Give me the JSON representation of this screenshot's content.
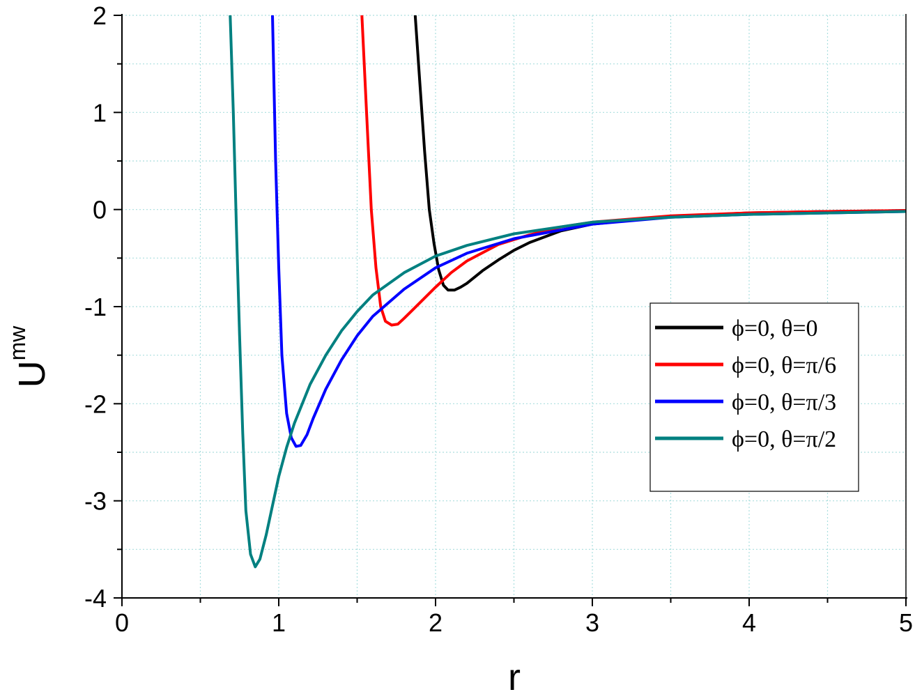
{
  "chart_data": {
    "type": "line",
    "xlabel": "r",
    "ylabel_main": "U",
    "ylabel_sup": "mw",
    "xlim": [
      0,
      5
    ],
    "ylim": [
      -4,
      2
    ],
    "xticks": [
      0,
      1,
      2,
      3,
      4,
      5
    ],
    "yticks": [
      -4,
      -3,
      -2,
      -1,
      0,
      1,
      2
    ],
    "minor_grid": true,
    "grid_color": "#aadede",
    "legend_position": "right-middle",
    "series": [
      {
        "name": "ϕ=0, θ=0",
        "color": "#000000",
        "x": [
          1.87,
          1.9,
          1.93,
          1.96,
          1.99,
          2.02,
          2.05,
          2.08,
          2.12,
          2.16,
          2.2,
          2.3,
          2.4,
          2.5,
          2.6,
          2.8,
          3.0,
          3.5,
          4.0,
          4.5,
          5.0
        ],
        "y": [
          2.0,
          1.3,
          0.6,
          0.0,
          -0.35,
          -0.62,
          -0.78,
          -0.83,
          -0.83,
          -0.8,
          -0.76,
          -0.63,
          -0.52,
          -0.42,
          -0.34,
          -0.22,
          -0.15,
          -0.07,
          -0.035,
          -0.02,
          -0.01
        ]
      },
      {
        "name": "ϕ=0, θ=π/6",
        "color": "#ff0000",
        "x": [
          1.53,
          1.56,
          1.59,
          1.62,
          1.65,
          1.68,
          1.72,
          1.76,
          1.8,
          1.85,
          1.9,
          2.0,
          2.1,
          2.2,
          2.4,
          2.6,
          2.8,
          3.0,
          3.5,
          4.0,
          4.5,
          5.0
        ],
        "y": [
          2.0,
          1.0,
          0.0,
          -0.6,
          -1.0,
          -1.15,
          -1.19,
          -1.18,
          -1.12,
          -1.04,
          -0.96,
          -0.8,
          -0.65,
          -0.53,
          -0.36,
          -0.26,
          -0.18,
          -0.13,
          -0.065,
          -0.035,
          -0.02,
          -0.01
        ]
      },
      {
        "name": "ϕ=0, θ=π/3",
        "color": "#0000ff",
        "x": [
          0.96,
          0.98,
          1.0,
          1.02,
          1.05,
          1.08,
          1.11,
          1.14,
          1.18,
          1.22,
          1.3,
          1.4,
          1.5,
          1.6,
          1.8,
          2.0,
          2.2,
          2.5,
          3.0,
          3.5,
          4.0,
          5.0
        ],
        "y": [
          2.0,
          0.5,
          -0.6,
          -1.5,
          -2.1,
          -2.35,
          -2.44,
          -2.43,
          -2.32,
          -2.15,
          -1.85,
          -1.55,
          -1.3,
          -1.1,
          -0.82,
          -0.6,
          -0.45,
          -0.3,
          -0.15,
          -0.08,
          -0.05,
          -0.02
        ]
      },
      {
        "name": "ϕ=0, θ=π/2",
        "color": "#008080",
        "x": [
          0.69,
          0.71,
          0.73,
          0.75,
          0.77,
          0.79,
          0.82,
          0.85,
          0.88,
          0.92,
          0.96,
          1.0,
          1.05,
          1.1,
          1.2,
          1.3,
          1.4,
          1.5,
          1.6,
          1.8,
          2.0,
          2.2,
          2.5,
          3.0,
          3.5,
          4.0,
          5.0
        ],
        "y": [
          2.0,
          1.0,
          -0.2,
          -1.3,
          -2.3,
          -3.1,
          -3.55,
          -3.68,
          -3.6,
          -3.35,
          -3.05,
          -2.75,
          -2.45,
          -2.2,
          -1.8,
          -1.5,
          -1.25,
          -1.05,
          -0.88,
          -0.65,
          -0.48,
          -0.37,
          -0.25,
          -0.13,
          -0.08,
          -0.05,
          -0.02
        ]
      }
    ]
  }
}
